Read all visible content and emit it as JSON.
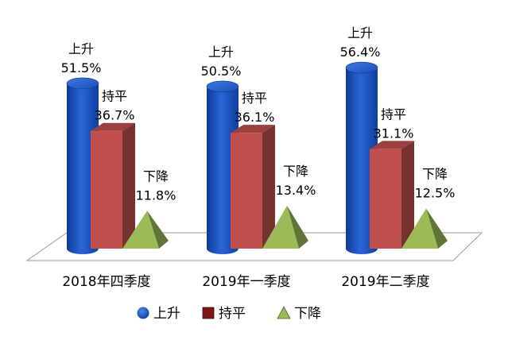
{
  "chart_data": {
    "type": "bar",
    "variant": "3d-cylinder-box-pyramid",
    "categories": [
      "2018年四季度",
      "2019年一季度",
      "2019年二季度"
    ],
    "series": [
      {
        "name": "上升",
        "values": [
          51.5,
          50.5,
          56.4
        ],
        "labels": [
          "51.5%",
          "50.5%",
          "56.4%"
        ],
        "color": "#1f56c4",
        "shape": "cylinder"
      },
      {
        "name": "持平",
        "values": [
          36.7,
          36.1,
          31.1
        ],
        "labels": [
          "36.7%",
          "36.1%",
          "31.1%"
        ],
        "color": "#c0504d",
        "shape": "box"
      },
      {
        "name": "下降",
        "values": [
          11.8,
          13.4,
          12.5
        ],
        "labels": [
          "11.8%",
          "13.4%",
          "12.5%"
        ],
        "color": "#9bbb59",
        "shape": "pyramid"
      }
    ],
    "unit": "%",
    "ylim": [
      0,
      60
    ],
    "grid": false,
    "legend_position": "bottom"
  }
}
